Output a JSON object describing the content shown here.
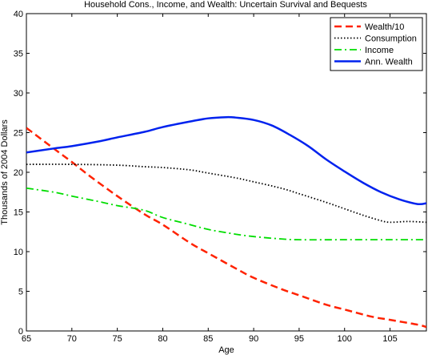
{
  "chart_data": {
    "type": "line",
    "title": "Household Cons., Income, and Wealth: Uncertain Survival and Bequests",
    "xlabel": "Age",
    "ylabel": "Thousands of 2004 Dollars",
    "xlim": [
      65,
      109
    ],
    "ylim": [
      0,
      40
    ],
    "xticks": [
      65,
      70,
      75,
      80,
      85,
      90,
      95,
      100,
      105
    ],
    "yticks": [
      0,
      5,
      10,
      15,
      20,
      25,
      30,
      35,
      40
    ],
    "xtick_labels": [
      "65",
      "70",
      "75",
      "80",
      "85",
      "90",
      "95",
      "100",
      "105"
    ],
    "ytick_labels": [
      "0",
      "5",
      "10",
      "15",
      "20",
      "25",
      "30",
      "35",
      "40"
    ],
    "grid": false,
    "legend_position": "top-right",
    "series": [
      {
        "name": "Wealth/10",
        "color": "#ff2200",
        "dash": "dashed",
        "x": [
          65,
          68,
          70,
          72,
          75,
          78,
          80,
          83,
          85,
          88,
          90,
          93,
          95,
          98,
          100,
          103,
          105,
          108,
          109
        ],
        "y": [
          25.6,
          23.0,
          21.3,
          19.5,
          17.0,
          14.7,
          13.4,
          11.1,
          9.8,
          7.9,
          6.7,
          5.3,
          4.5,
          3.3,
          2.7,
          1.8,
          1.4,
          0.8,
          0.5
        ]
      },
      {
        "name": "Consumption",
        "color": "#000000",
        "dash": "dotted",
        "x": [
          65,
          70,
          75,
          78,
          80,
          83,
          85,
          88,
          90,
          93,
          95,
          98,
          100,
          102,
          104,
          105,
          107,
          109
        ],
        "y": [
          21.0,
          21.0,
          20.9,
          20.7,
          20.6,
          20.3,
          19.9,
          19.3,
          18.8,
          18.0,
          17.3,
          16.2,
          15.4,
          14.6,
          13.9,
          13.7,
          13.8,
          13.7
        ]
      },
      {
        "name": "Income",
        "color": "#00dd00",
        "dash": "dashdot",
        "x": [
          65,
          68,
          70,
          73,
          75,
          78,
          80,
          83,
          85,
          88,
          90,
          93,
          95,
          100,
          105,
          109
        ],
        "y": [
          18.0,
          17.5,
          17.0,
          16.3,
          15.8,
          15.2,
          14.3,
          13.4,
          12.8,
          12.2,
          11.9,
          11.6,
          11.5,
          11.5,
          11.5,
          11.5
        ]
      },
      {
        "name": "Ann. Wealth",
        "color": "#0022ee",
        "dash": "solid",
        "x": [
          65,
          68,
          70,
          73,
          75,
          78,
          80,
          83,
          85,
          87,
          88,
          90,
          92,
          94,
          96,
          98,
          100,
          102,
          104,
          106,
          108,
          109
        ],
        "y": [
          22.5,
          23.0,
          23.3,
          23.9,
          24.4,
          25.1,
          25.7,
          26.4,
          26.8,
          26.95,
          26.9,
          26.6,
          25.9,
          24.7,
          23.3,
          21.6,
          20.1,
          18.7,
          17.5,
          16.6,
          16.0,
          16.1
        ]
      }
    ]
  }
}
